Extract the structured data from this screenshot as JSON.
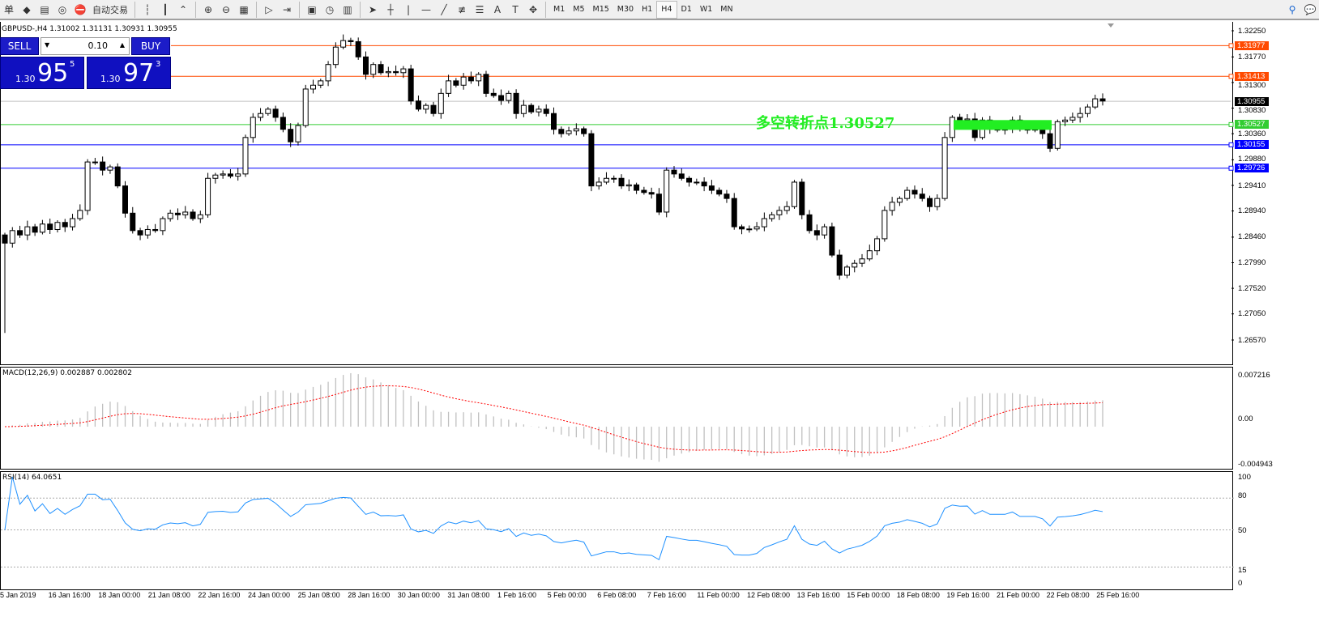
{
  "toolbar": {
    "items": [
      {
        "name": "menu-label",
        "label": "单"
      },
      {
        "name": "open-folder-icon",
        "label": "◆"
      },
      {
        "name": "terminal-icon",
        "label": "▤"
      },
      {
        "name": "signal-icon",
        "label": "◎"
      },
      {
        "name": "autotrading-icon",
        "label": "⛔"
      },
      {
        "name": "autotrading-label",
        "label": "自动交易"
      }
    ],
    "tools": [
      "bar-chart-icon",
      "candlestick-icon",
      "line-chart-icon",
      "zoom-in-icon",
      "zoom-out-icon",
      "tile-windows-icon",
      "chart-shift-icon",
      "autoscroll-icon",
      "new-indicator-icon",
      "periods-clock-icon",
      "templates-icon",
      "cursor-icon",
      "crosshair-icon",
      "vertical-line-icon",
      "horizontal-line-icon",
      "trendline-icon",
      "fibonacci-icon",
      "fibo-fan-icon",
      "text-icon",
      "text-label-icon",
      "arrows-icon"
    ],
    "tool_glyphs": [
      "┆",
      "┃",
      "⌃",
      "⊕",
      "⊖",
      "▦",
      "▷",
      "⇥",
      "▣",
      "◷",
      "▥",
      "➤",
      "┼",
      "|",
      "—",
      "╱",
      "≢",
      "☰",
      "A",
      "T",
      "✥"
    ],
    "timeframes": [
      "M1",
      "M5",
      "M15",
      "M30",
      "H1",
      "H4",
      "D1",
      "W1",
      "MN"
    ],
    "active_timeframe": "H4",
    "search_icon": "⚲",
    "chat_icon": "💬"
  },
  "chart": {
    "symbol_line": "GBPUSD-,H4  1.31002 1.31131 1.30931 1.30955",
    "annotation": "多空转折点1.30527",
    "price_axis": [
      "1.32250",
      "1.31770",
      "1.31300",
      "1.30830",
      "1.30360",
      "1.29880",
      "1.29410",
      "1.28940",
      "1.28460",
      "1.27990",
      "1.27520",
      "1.27050",
      "1.26570"
    ],
    "price_range": [
      1.2657,
      1.3225
    ],
    "levels": [
      {
        "value": "1.31977",
        "color": "#ff4a00"
      },
      {
        "value": "1.31413",
        "color": "#ff4a00"
      },
      {
        "value": "1.30955",
        "color": "#000000",
        "line": "#c0c0c0"
      },
      {
        "value": "1.30527",
        "color": "#32cd32"
      },
      {
        "value": "1.30155",
        "color": "#0000ff"
      },
      {
        "value": "1.29726",
        "color": "#0000ff"
      }
    ],
    "zone": {
      "from": 1.3043,
      "to": 1.3061,
      "color": "#22ee22"
    },
    "closes": [
      1.2835,
      1.2858,
      1.285,
      1.2865,
      1.2855,
      1.287,
      1.286,
      1.2873,
      1.2865,
      1.288,
      1.2895,
      1.2984,
      1.2984,
      1.2969,
      1.2975,
      1.294,
      1.289,
      1.2858,
      1.285,
      1.286,
      1.2858,
      1.288,
      1.289,
      1.2887,
      1.2892,
      1.288,
      1.2887,
      1.2954,
      1.296,
      1.2962,
      1.2958,
      1.2962,
      1.3029,
      1.3066,
      1.3073,
      1.3081,
      1.3066,
      1.3044,
      1.3021,
      1.3051,
      1.3118,
      1.3125,
      1.3133,
      1.3163,
      1.3195,
      1.3207,
      1.3205,
      1.3177,
      1.3145,
      1.3163,
      1.3148,
      1.315,
      1.3148,
      1.3155,
      1.3096,
      1.3081,
      1.3088,
      1.3073,
      1.311,
      1.3133,
      1.3125,
      1.314,
      1.3133,
      1.3145,
      1.311,
      1.3106,
      1.3097,
      1.311,
      1.3073,
      1.3088,
      1.3076,
      1.3081,
      1.3073,
      1.3044,
      1.3036,
      1.3041,
      1.3045,
      1.3036,
      1.294,
      1.2947,
      1.2954,
      1.2954,
      1.294,
      1.2942,
      1.2932,
      1.2928,
      1.2925,
      1.2892,
      1.2969,
      1.2962,
      1.2954,
      1.2947,
      1.2947,
      1.294,
      1.2932,
      1.2925,
      1.2917,
      1.2865,
      1.2861,
      1.2861,
      1.2865,
      1.288,
      1.2887,
      1.2895,
      1.2902,
      1.2947,
      1.2887,
      1.2858,
      1.285,
      1.2865,
      1.2813,
      1.2776,
      1.2791,
      1.2798,
      1.2806,
      1.2821,
      1.2843,
      1.2895,
      1.291,
      1.2917,
      1.2932,
      1.2925,
      1.2917,
      1.2902,
      1.2917,
      1.3029,
      1.3066,
      1.3061,
      1.3063,
      1.3029,
      1.3061,
      1.3044,
      1.3044,
      1.3044,
      1.3061,
      1.3044,
      1.3044,
      1.3044,
      1.3036,
      1.3009,
      1.3058,
      1.3061,
      1.3066,
      1.3073,
      1.3085,
      1.31,
      1.3096
    ],
    "time_axis": [
      "5 Jan 2019",
      "16 Jan 16:00",
      "18 Jan 00:00",
      "21 Jan 08:00",
      "22 Jan 16:00",
      "24 Jan 00:00",
      "25 Jan 08:00",
      "28 Jan 16:00",
      "30 Jan 00:00",
      "31 Jan 08:00",
      "1 Feb 16:00",
      "5 Feb 00:00",
      "6 Feb 08:00",
      "7 Feb 16:00",
      "11 Feb 00:00",
      "12 Feb 08:00",
      "13 Feb 16:00",
      "15 Feb 00:00",
      "18 Feb 08:00",
      "19 Feb 16:00",
      "21 Feb 00:00",
      "22 Feb 08:00",
      "25 Feb 16:00"
    ]
  },
  "trade": {
    "sell_label": "SELL",
    "buy_label": "BUY",
    "lot": "0.10",
    "sell_prefix": "1.30",
    "sell_big": "95",
    "sell_sup": "5",
    "buy_prefix": "1.30",
    "buy_big": "97",
    "buy_sup": "3"
  },
  "macd": {
    "label": "MACD(12,26,9) 0.002887 0.002802",
    "axis": [
      "0.007216",
      "0.00",
      "-0.004943"
    ],
    "range": [
      -0.004943,
      0.007216
    ],
    "hist_color": "#c0c0c0",
    "signal_color": "#ff0000"
  },
  "rsi": {
    "label": "RSI(14) 64.0651",
    "axis": [
      "100",
      "80",
      "50",
      "15",
      "0"
    ],
    "levels": [
      80,
      50,
      15
    ],
    "color": "#1e90ff"
  }
}
